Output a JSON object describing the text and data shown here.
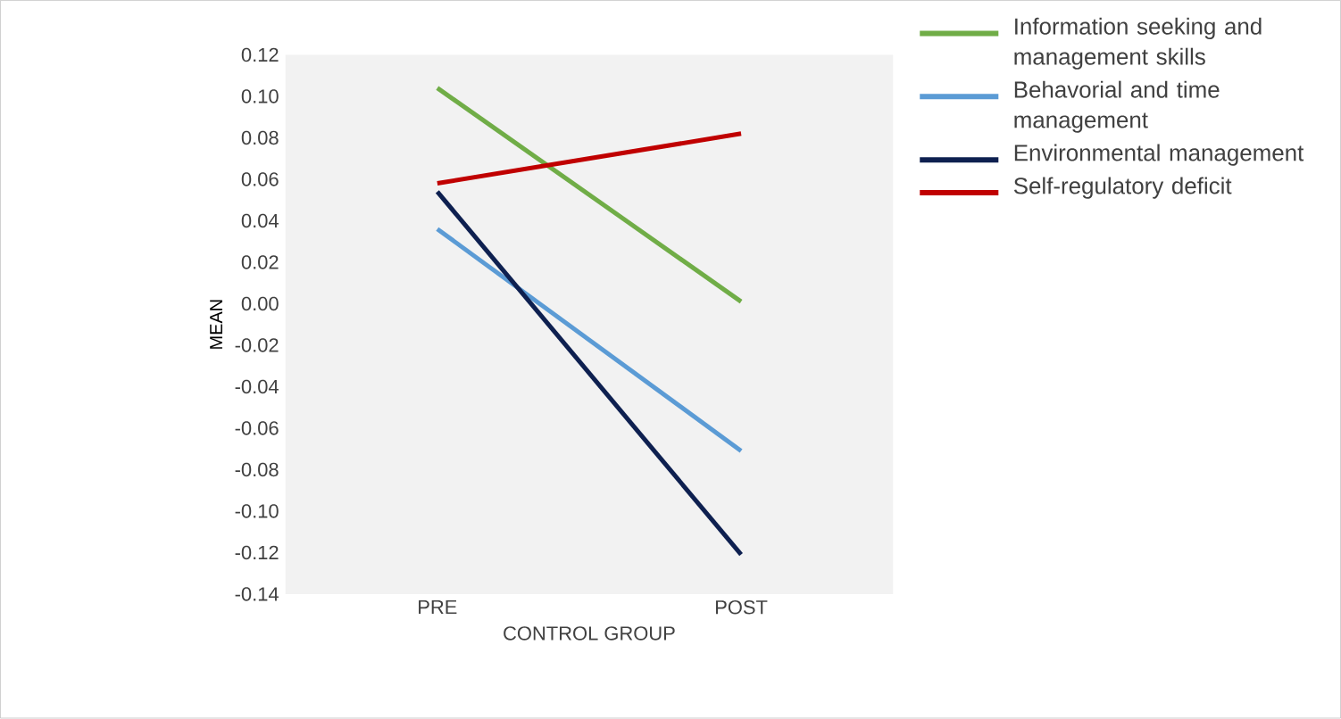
{
  "chart_data": {
    "type": "line",
    "xlabel": "CONTROL GROUP",
    "ylabel": "MEAN",
    "categories": [
      "PRE",
      "POST"
    ],
    "series": [
      {
        "name": "Information seeking and management skills",
        "color": "#70ad47",
        "values": [
          0.104,
          0.001
        ]
      },
      {
        "name": "Behavorial and time management",
        "color": "#5b9bd5",
        "values": [
          0.036,
          -0.071
        ]
      },
      {
        "name": "Environmental management",
        "color": "#0e2050",
        "values": [
          0.054,
          -0.121
        ]
      },
      {
        "name": "Self-regulatory deficit",
        "color": "#c00000",
        "values": [
          0.058,
          0.082
        ]
      }
    ],
    "ylim": [
      -0.14,
      0.12
    ],
    "yticks": [
      {
        "value": -0.14,
        "label": "-0.14"
      },
      {
        "value": -0.12,
        "label": "-0.12"
      },
      {
        "value": -0.1,
        "label": "-0.10"
      },
      {
        "value": -0.08,
        "label": "-0.08"
      },
      {
        "value": -0.06,
        "label": "-0.06"
      },
      {
        "value": -0.04,
        "label": "-0.04"
      },
      {
        "value": -0.02,
        "label": "-0.02"
      },
      {
        "value": 0.0,
        "label": "0.00"
      },
      {
        "value": 0.02,
        "label": "0.02"
      },
      {
        "value": 0.04,
        "label": "0.04"
      },
      {
        "value": 0.06,
        "label": "0.06"
      },
      {
        "value": 0.08,
        "label": "0.08"
      },
      {
        "value": 0.1,
        "label": "0.10"
      },
      {
        "value": 0.12,
        "label": "0.12"
      }
    ],
    "legend": "right",
    "marker": "none",
    "line_style": "solid",
    "grid": false
  }
}
